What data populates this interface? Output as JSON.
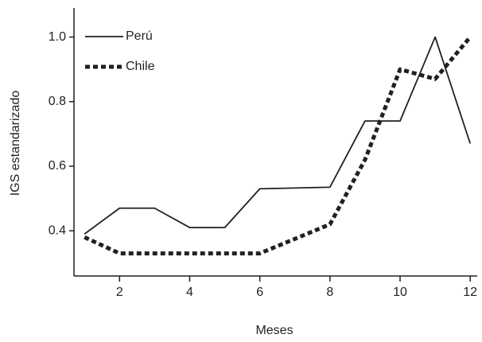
{
  "chart_data": {
    "type": "line",
    "x_label": "Meses",
    "y_label": "IGS estandarizado",
    "x": [
      1,
      2,
      3,
      4,
      5,
      6,
      8,
      9,
      10,
      11,
      12
    ],
    "series": [
      {
        "name": "Perú",
        "color": "#231f20",
        "dash": "solid",
        "values": [
          0.39,
          0.47,
          0.47,
          0.41,
          0.41,
          0.53,
          0.535,
          0.74,
          0.74,
          1.0,
          0.67
        ]
      },
      {
        "name": "Chile",
        "color": "#231f20",
        "dash": "dotted",
        "values": [
          0.38,
          0.33,
          0.33,
          0.33,
          0.33,
          0.33,
          0.42,
          0.62,
          0.9,
          0.87,
          1.0
        ]
      }
    ],
    "xlim": [
      0.7,
      12.2
    ],
    "ylim": [
      0.26,
      1.09
    ],
    "xticks": [
      2,
      4,
      6,
      8,
      10,
      12
    ],
    "yticks": [
      0.4,
      0.6,
      0.8,
      {
        "value": 1.0,
        "label": "1.0"
      }
    ],
    "grid": false,
    "legend": "upper left"
  }
}
